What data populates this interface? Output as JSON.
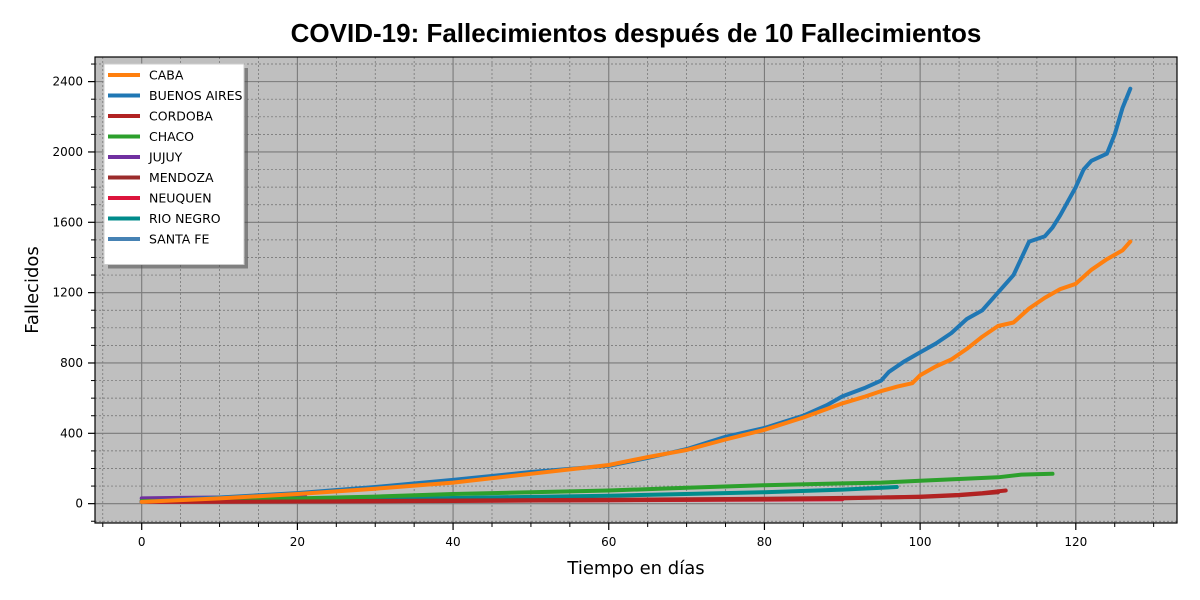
{
  "chart_data": {
    "type": "line",
    "title": "COVID-19: Fallecimientos después de 10 Fallecimientos",
    "xlabel": "Tiempo en días",
    "ylabel": "Fallecidos",
    "xlim": [
      -6,
      133
    ],
    "ylim": [
      -110,
      2540
    ],
    "xticks": [
      0,
      20,
      40,
      60,
      80,
      100,
      120
    ],
    "yticks": [
      0,
      400,
      800,
      1200,
      1600,
      2000,
      2400
    ],
    "grid": true,
    "background": "#bfbfbf",
    "legend_position": "top-left",
    "series": [
      {
        "name": "CABA",
        "color": "#ff7f0e",
        "x": [
          0,
          10,
          20,
          30,
          40,
          50,
          60,
          65,
          70,
          75,
          80,
          85,
          90,
          93,
          95,
          97,
          99,
          100,
          102,
          104,
          106,
          108,
          110,
          112,
          114,
          116,
          118,
          120,
          122,
          124,
          126,
          127
        ],
        "y": [
          10,
          30,
          55,
          85,
          120,
          170,
          220,
          265,
          305,
          365,
          420,
          490,
          570,
          610,
          640,
          665,
          685,
          730,
          780,
          820,
          880,
          950,
          1010,
          1030,
          1110,
          1170,
          1220,
          1250,
          1330,
          1390,
          1440,
          1490
        ]
      },
      {
        "name": "BUENOS AIRES",
        "color": "#1f77b4",
        "x": [
          0,
          10,
          20,
          30,
          40,
          50,
          60,
          65,
          70,
          75,
          80,
          85,
          88,
          90,
          93,
          95,
          96,
          98,
          100,
          102,
          104,
          106,
          108,
          110,
          112,
          114,
          116,
          117,
          118,
          120,
          121,
          122,
          124,
          125,
          126,
          127
        ],
        "y": [
          10,
          35,
          60,
          95,
          135,
          180,
          215,
          260,
          310,
          380,
          430,
          500,
          560,
          610,
          660,
          700,
          750,
          810,
          860,
          910,
          970,
          1050,
          1100,
          1200,
          1300,
          1490,
          1520,
          1570,
          1640,
          1800,
          1900,
          1950,
          1990,
          2100,
          2250,
          2360
        ]
      },
      {
        "name": "CORDOBA",
        "color": "#b22222",
        "x": [
          0,
          20,
          40,
          60,
          80,
          90,
          100,
          105,
          108,
          110,
          111
        ],
        "y": [
          10,
          12,
          15,
          20,
          25,
          30,
          40,
          50,
          60,
          70,
          75
        ]
      },
      {
        "name": "CHACO",
        "color": "#2ca02c",
        "x": [
          0,
          10,
          20,
          30,
          40,
          50,
          60,
          70,
          80,
          90,
          95,
          100,
          110,
          113,
          117
        ],
        "y": [
          15,
          20,
          30,
          40,
          55,
          65,
          75,
          90,
          105,
          115,
          120,
          130,
          150,
          165,
          170
        ]
      },
      {
        "name": "JUJUY",
        "color": "#7030a0",
        "x": [
          0,
          5,
          10,
          15,
          21
        ],
        "y": [
          30,
          33,
          35,
          38,
          40
        ]
      },
      {
        "name": "MENDOZA",
        "color": "#9b2b2b",
        "x": [
          0,
          20,
          40,
          60,
          80,
          100,
          105,
          108,
          110
        ],
        "y": [
          12,
          14,
          18,
          22,
          28,
          38,
          48,
          58,
          65
        ]
      },
      {
        "name": "NEUQUEN",
        "color": "#dc143c",
        "x": [
          0,
          20,
          40,
          60,
          80,
          90
        ],
        "y": [
          10,
          13,
          16,
          19,
          23,
          25
        ]
      },
      {
        "name": "RIO NEGRO",
        "color": "#008b8b",
        "x": [
          0,
          20,
          40,
          60,
          80,
          90,
          97
        ],
        "y": [
          12,
          20,
          32,
          45,
          65,
          80,
          95
        ]
      },
      {
        "name": "SANTA FE",
        "color": "#4682b4",
        "x": [
          0,
          5,
          10,
          15
        ],
        "y": [
          10,
          12,
          15,
          18
        ]
      }
    ]
  }
}
